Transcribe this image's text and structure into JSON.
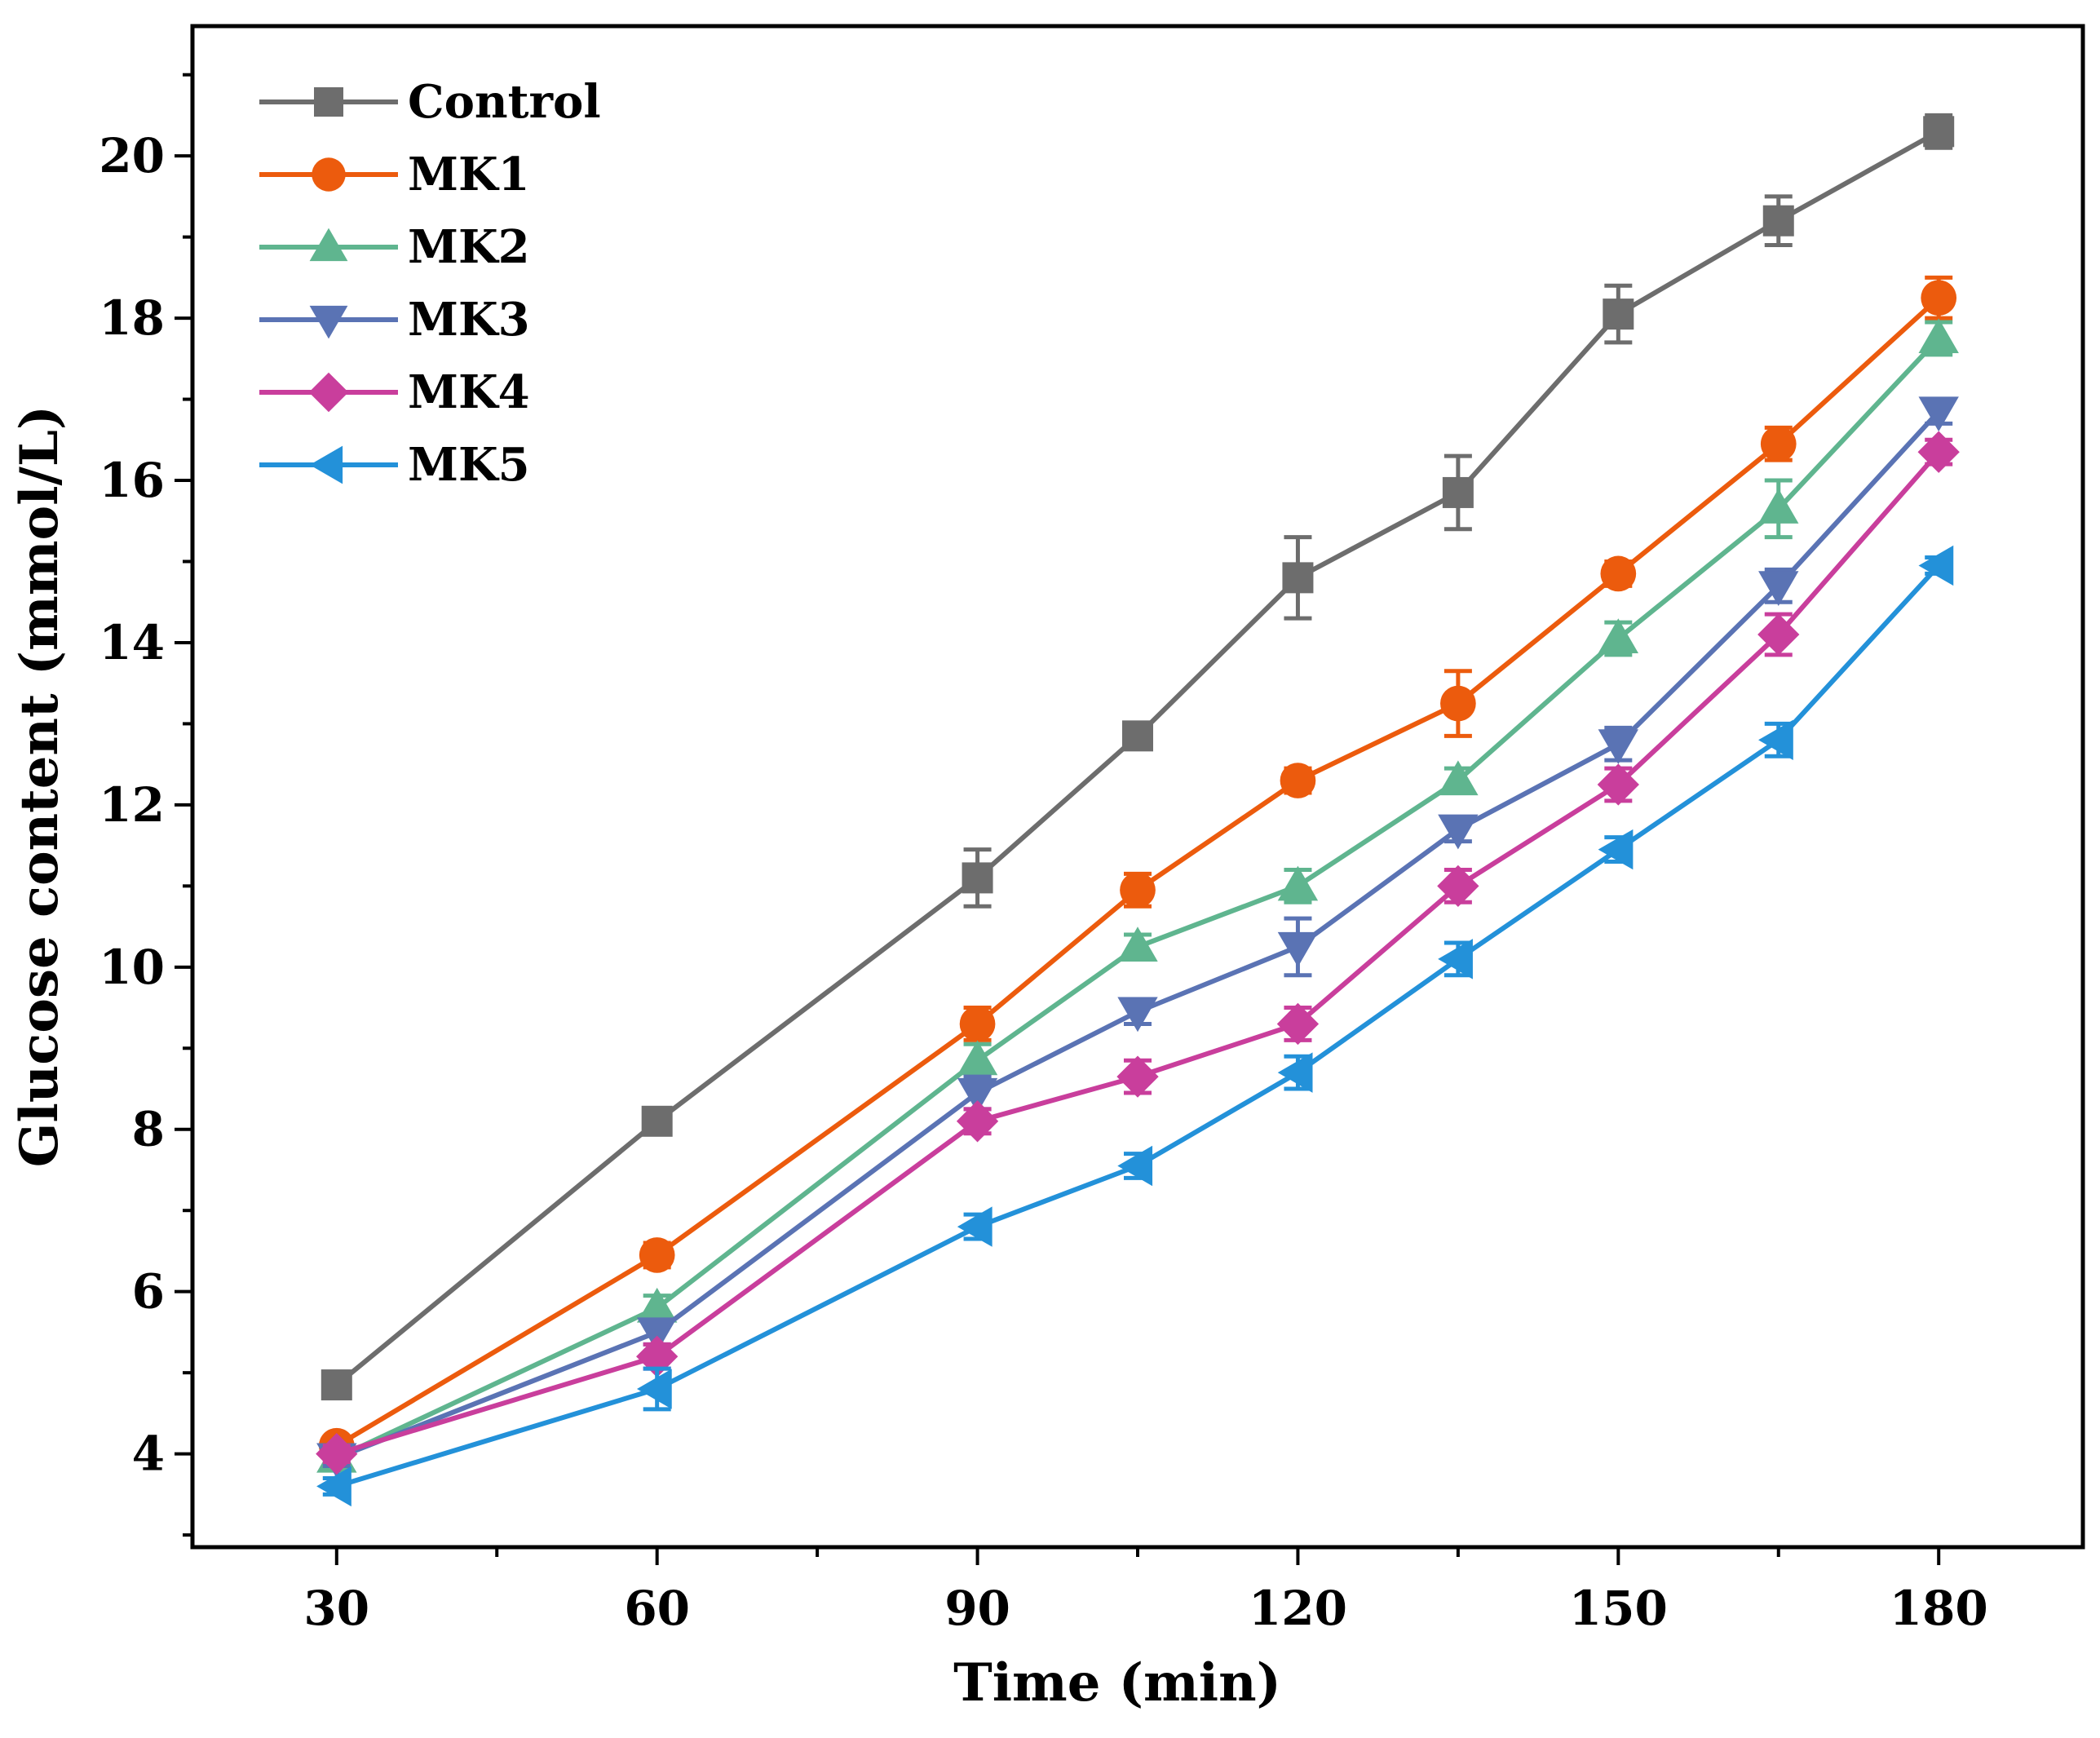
{
  "chart_data": {
    "type": "line",
    "title": "",
    "xlabel": "Time (min)",
    "ylabel": "Glucose content (mmol/L)",
    "xlim": [
      16.5,
      193.5
    ],
    "ylim": [
      2.85,
      21.6
    ],
    "xticks": [
      30,
      60,
      90,
      120,
      150,
      180
    ],
    "yticks": [
      4,
      6,
      8,
      10,
      12,
      14,
      16,
      18,
      20
    ],
    "x": [
      30,
      60,
      90,
      105,
      120,
      135,
      150,
      165,
      180
    ],
    "legend_position": "top-left",
    "grid": false,
    "series": [
      {
        "name": "Control",
        "color": "#6d6d6d",
        "marker": "square",
        "values": [
          4.85,
          8.1,
          11.1,
          12.85,
          14.8,
          15.85,
          18.05,
          19.2,
          20.3
        ],
        "errors": [
          0.15,
          0.15,
          0.35,
          0.15,
          0.5,
          0.45,
          0.35,
          0.3,
          0.2
        ]
      },
      {
        "name": "MK1",
        "color": "#ec5b0d",
        "marker": "circle",
        "values": [
          4.1,
          6.45,
          9.3,
          10.95,
          12.3,
          13.25,
          14.85,
          16.45,
          18.25
        ],
        "errors": [
          0.1,
          0.15,
          0.2,
          0.2,
          0.15,
          0.4,
          0.15,
          0.2,
          0.25
        ]
      },
      {
        "name": "MK2",
        "color": "#5fb58f",
        "marker": "triangle-up",
        "values": [
          3.95,
          5.8,
          8.85,
          10.25,
          11.0,
          12.3,
          14.05,
          15.65,
          17.75
        ],
        "errors": [
          0.1,
          0.15,
          0.2,
          0.15,
          0.2,
          0.15,
          0.2,
          0.35,
          0.2
        ]
      },
      {
        "name": "MK3",
        "color": "#5a73b4",
        "marker": "triangle-down",
        "values": [
          3.95,
          5.5,
          8.45,
          9.45,
          10.25,
          11.7,
          12.75,
          14.7,
          16.85
        ],
        "errors": [
          0.1,
          0.15,
          0.2,
          0.15,
          0.35,
          0.15,
          0.2,
          0.2,
          0.15
        ]
      },
      {
        "name": "MK4",
        "color": "#c93e9c",
        "marker": "diamond",
        "values": [
          4.0,
          5.2,
          8.1,
          8.65,
          9.3,
          11.0,
          12.25,
          14.1,
          16.35
        ],
        "errors": [
          0.1,
          0.15,
          0.15,
          0.2,
          0.2,
          0.2,
          0.2,
          0.25,
          0.15
        ]
      },
      {
        "name": "MK5",
        "color": "#2391d9",
        "marker": "triangle-left",
        "values": [
          3.6,
          4.8,
          6.8,
          7.55,
          8.7,
          10.1,
          11.45,
          12.8,
          14.95
        ],
        "errors": [
          0.1,
          0.25,
          0.15,
          0.15,
          0.2,
          0.2,
          0.15,
          0.2,
          0.1
        ]
      }
    ]
  }
}
